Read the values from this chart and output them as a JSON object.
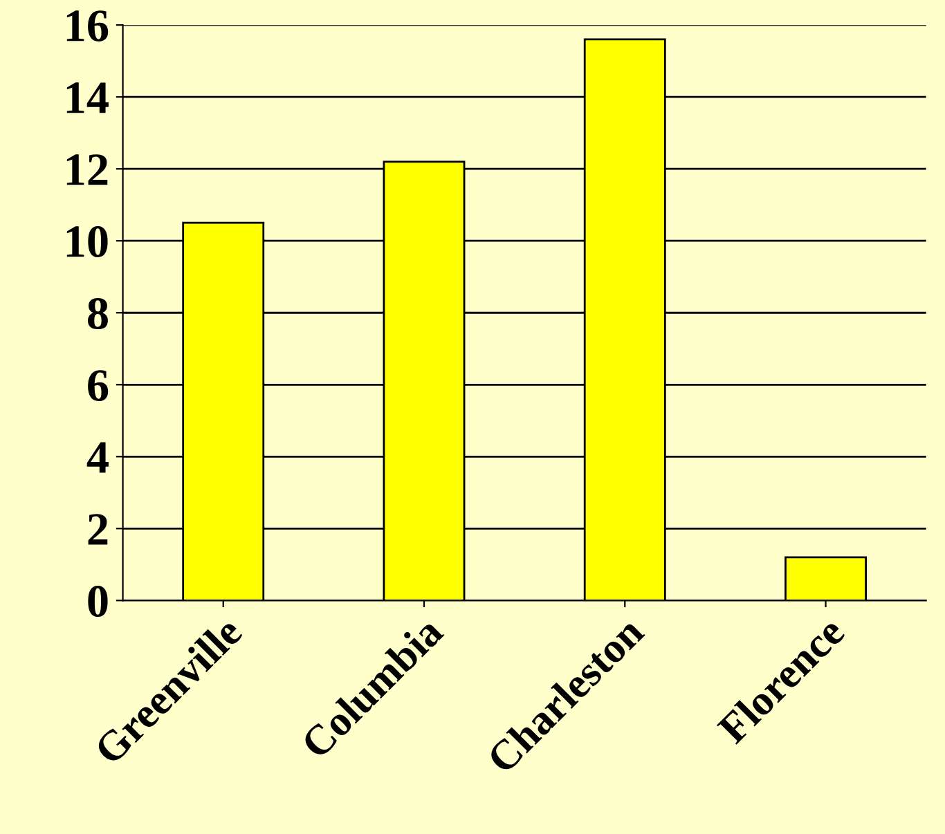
{
  "chart_data": {
    "type": "bar",
    "categories": [
      "Greenville",
      "Columbia",
      "Charleston",
      "Florence"
    ],
    "values": [
      10.5,
      12.2,
      15.6,
      1.2
    ],
    "color": "#ffff00",
    "ylim": [
      0,
      16
    ],
    "yticks": [
      0,
      2,
      4,
      6,
      8,
      10,
      12,
      14,
      16
    ],
    "grid": "y"
  }
}
